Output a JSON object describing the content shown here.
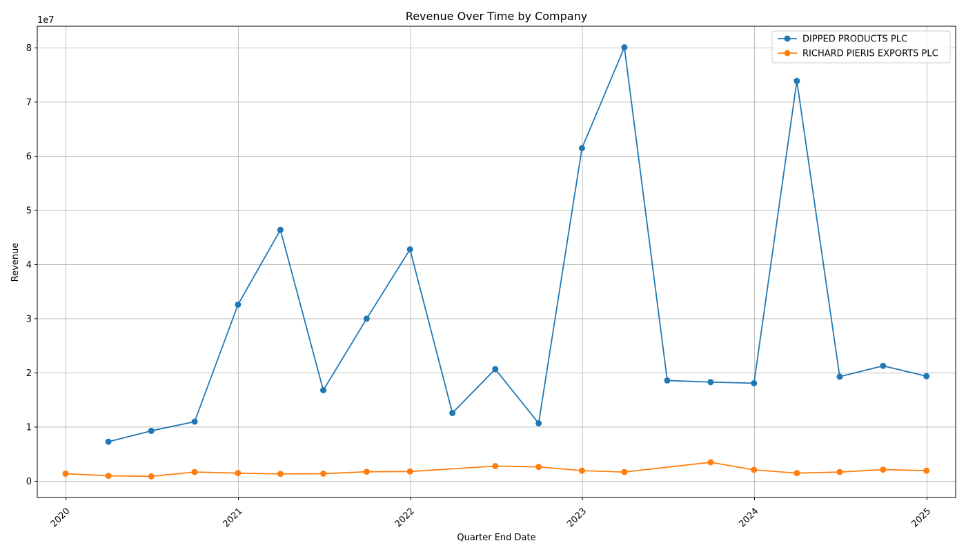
{
  "chart_data": {
    "type": "line",
    "title": "Revenue Over Time by Company",
    "xlabel": "Quarter End Date",
    "ylabel": "Revenue",
    "y_offset_label": "1e7",
    "y_scale_exponent": 7,
    "xlim": [
      "2019-11-01",
      "2025-03-03"
    ],
    "ylim": [
      -3000000,
      84000000
    ],
    "x_ticks": [
      "2020-01-01",
      "2021-01-01",
      "2022-01-01",
      "2023-01-01",
      "2024-01-01",
      "2025-01-01"
    ],
    "x_tick_labels": [
      "2020",
      "2021",
      "2022",
      "2023",
      "2024",
      "2025"
    ],
    "y_ticks": [
      0,
      10000000,
      20000000,
      30000000,
      40000000,
      50000000,
      60000000,
      70000000,
      80000000
    ],
    "y_tick_labels": [
      "0",
      "1",
      "2",
      "3",
      "4",
      "5",
      "6",
      "7",
      "8"
    ],
    "grid": true,
    "legend_position": "top-right",
    "series": [
      {
        "name": "DIPPED PRODUCTS PLC",
        "color": "#1f77b4",
        "marker": "circle",
        "points": [
          {
            "x": "2020-03-31",
            "y": 7300000
          },
          {
            "x": "2020-06-30",
            "y": 9300000
          },
          {
            "x": "2020-09-30",
            "y": 11000000
          },
          {
            "x": "2020-12-31",
            "y": 32600000
          },
          {
            "x": "2021-03-31",
            "y": 46400000
          },
          {
            "x": "2021-06-30",
            "y": 16800000
          },
          {
            "x": "2021-09-30",
            "y": 30000000
          },
          {
            "x": "2021-12-31",
            "y": 42800000
          },
          {
            "x": "2022-03-31",
            "y": 12600000
          },
          {
            "x": "2022-06-30",
            "y": 20700000
          },
          {
            "x": "2022-09-30",
            "y": 10700000
          },
          {
            "x": "2022-12-31",
            "y": 61500000
          },
          {
            "x": "2023-03-31",
            "y": 80100000
          },
          {
            "x": "2023-06-30",
            "y": 18600000
          },
          {
            "x": "2023-09-30",
            "y": 18300000
          },
          {
            "x": "2023-12-31",
            "y": 18100000
          },
          {
            "x": "2024-03-31",
            "y": 73900000
          },
          {
            "x": "2024-06-30",
            "y": 19300000
          },
          {
            "x": "2024-09-30",
            "y": 21300000
          },
          {
            "x": "2024-12-31",
            "y": 19400000
          }
        ]
      },
      {
        "name": "RICHARD PIERIS EXPORTS PLC",
        "color": "#ff7f0e",
        "marker": "circle",
        "points": [
          {
            "x": "2019-12-31",
            "y": 1400000
          },
          {
            "x": "2020-03-31",
            "y": 1000000
          },
          {
            "x": "2020-06-30",
            "y": 900000
          },
          {
            "x": "2020-09-30",
            "y": 1700000
          },
          {
            "x": "2020-12-31",
            "y": 1500000
          },
          {
            "x": "2021-03-31",
            "y": 1350000
          },
          {
            "x": "2021-06-30",
            "y": 1400000
          },
          {
            "x": "2021-09-30",
            "y": 1750000
          },
          {
            "x": "2021-12-31",
            "y": 1800000
          },
          {
            "x": "2022-06-30",
            "y": 2800000
          },
          {
            "x": "2022-09-30",
            "y": 2650000
          },
          {
            "x": "2022-12-31",
            "y": 1950000
          },
          {
            "x": "2023-03-31",
            "y": 1700000
          },
          {
            "x": "2023-09-30",
            "y": 3500000
          },
          {
            "x": "2023-12-31",
            "y": 2100000
          },
          {
            "x": "2024-03-31",
            "y": 1500000
          },
          {
            "x": "2024-06-30",
            "y": 1700000
          },
          {
            "x": "2024-09-30",
            "y": 2150000
          },
          {
            "x": "2024-12-31",
            "y": 1950000
          }
        ]
      }
    ]
  }
}
